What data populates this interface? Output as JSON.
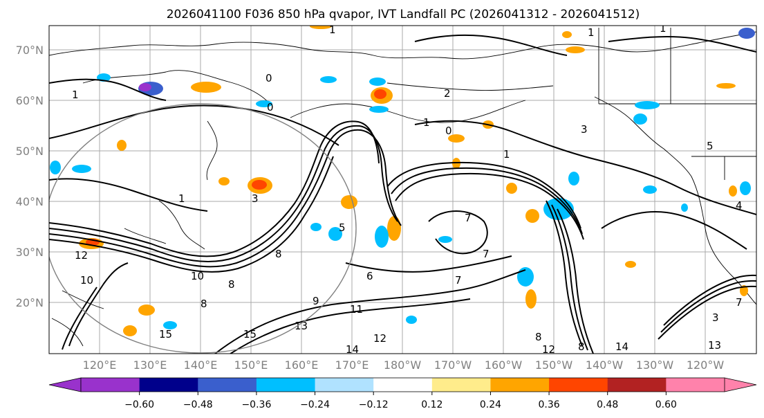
{
  "title": "2026041100 F036 850 hPa qvapor, IVT Landfall PC (2026041312 - 2026041512)",
  "map": {
    "lat_labels": [
      "70°N",
      "60°N",
      "50°N",
      "40°N",
      "30°N",
      "20°N"
    ],
    "lon_labels": [
      "120°E",
      "130°E",
      "140°E",
      "150°E",
      "160°E",
      "170°E",
      "180°W",
      "170°W",
      "160°W",
      "150°W",
      "140°W",
      "130°W",
      "120°W"
    ],
    "contour_labels": [
      "1",
      "1",
      "1",
      "0",
      "0",
      "1",
      "2",
      "1",
      "0",
      "1",
      "7",
      "3",
      "5",
      "3",
      "6",
      "7",
      "7",
      "8",
      "5",
      "7",
      "10",
      "8",
      "8",
      "11",
      "12",
      "14",
      "15",
      "13",
      "10",
      "8",
      "12",
      "8",
      "14",
      "3",
      "15",
      "13",
      "12",
      "9",
      "1",
      "4"
    ]
  },
  "colorbar": {
    "ticks": [
      "−0.60",
      "−0.48",
      "−0.36",
      "−0.24",
      "−0.12",
      "0.12",
      "0.24",
      "0.36",
      "0.48",
      "0.60"
    ],
    "colors": [
      "#9932cc",
      "#00008b",
      "#3a5fcd",
      "#00bfff",
      "#b0e2ff",
      "#ffffff",
      "#ffec8b",
      "#ffa500",
      "#ff4500",
      "#b22222",
      "#ff82ab",
      "#ff82ab"
    ]
  }
}
